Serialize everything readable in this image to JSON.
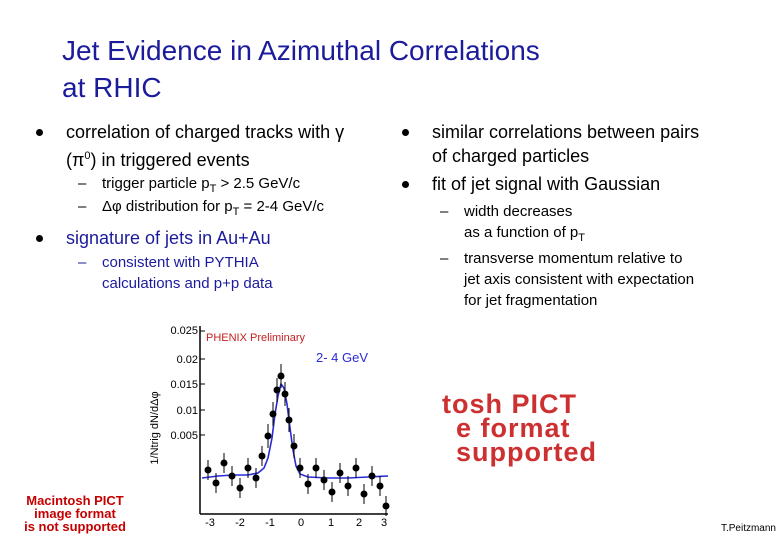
{
  "title": {
    "line1": "Jet Evidence in Azimuthal Correlations",
    "line2": "at RHIC"
  },
  "left": {
    "b1_a": "correlation of charged tracks with γ",
    "b1_b_pre": "(π",
    "b1_b_sup": "0",
    "b1_b_post": ") in triggered events",
    "s1_pre": "trigger particle p",
    "s1_sub": "T",
    "s1_post": " > 2.5 GeV/c",
    "s2_pre": "Δφ distribution for p",
    "s2_sub": "T",
    "s2_post": " = 2-4 GeV/c",
    "b2": "signature of jets in Au+Au",
    "s3_a": "consistent with PYTHIA",
    "s3_b": "calculations and p+p data"
  },
  "right": {
    "b1_a": "similar correlations between pairs",
    "b1_b": "of charged particles",
    "b2": "fit of jet signal with Gaussian",
    "s1_a": "width decreases",
    "s1_b_pre": "as a function of p",
    "s1_b_sub": "T",
    "s2_a": "transverse momentum relative to",
    "s2_b": "jet axis consistent with expectation",
    "s2_c": "for jet fragmentation"
  },
  "dash": "–",
  "plot": {
    "ylabel": "1/Ntrig dN/dΔφ",
    "legend": "PHENIX Preliminary",
    "range_label": "2- 4 GeV",
    "yticks": [
      "0.025",
      "0.02",
      "0.015",
      "0.01",
      "0.005"
    ],
    "xticks": [
      "-3",
      "-2",
      "-1",
      "0",
      "1",
      "2",
      "3"
    ]
  },
  "pict_left": [
    "Macintosh PICT",
    "image format",
    "is not supported"
  ],
  "pict_right": [
    "tosh PICT",
    "e format",
    "supported"
  ],
  "author": "T.Peitzmann",
  "colors": {
    "title": "#1b1b9c",
    "pict": "#c40000",
    "fit": "#2a2ad8"
  }
}
